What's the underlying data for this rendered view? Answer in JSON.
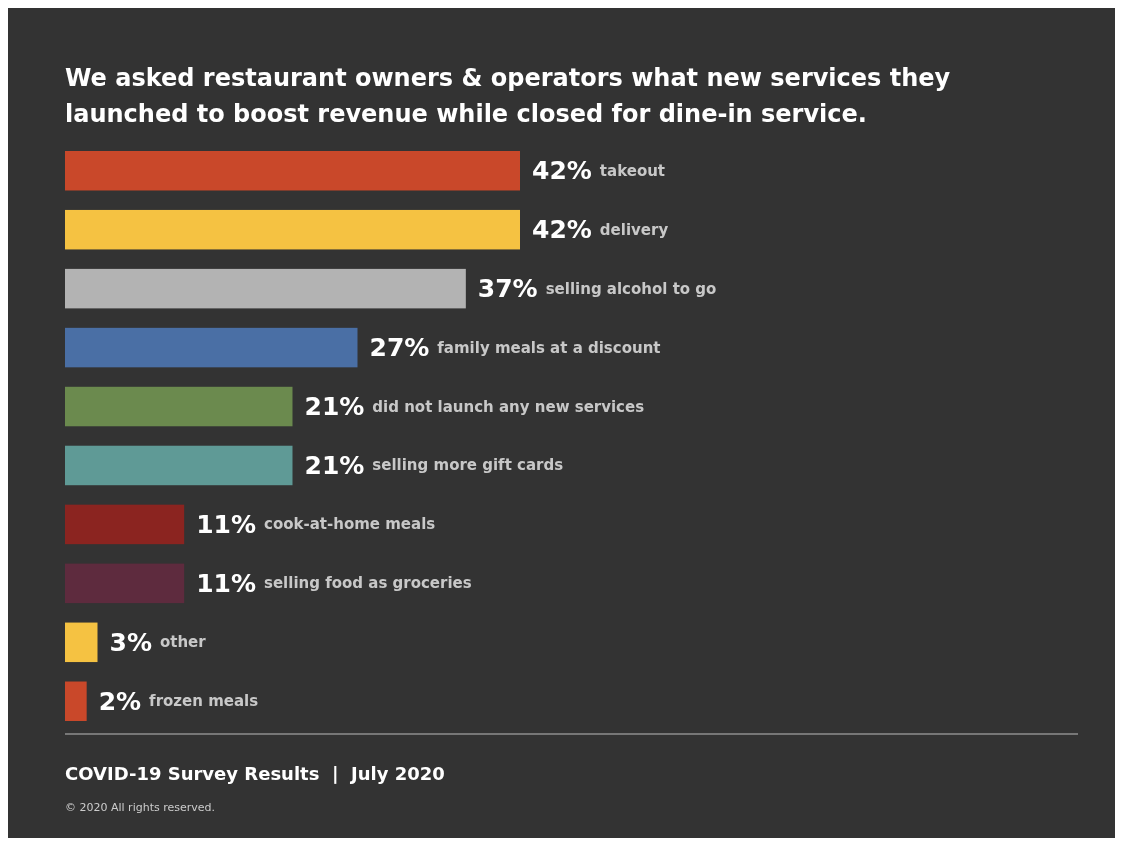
{
  "chart_data": {
    "type": "bar",
    "orientation": "horizontal",
    "title": "We asked restaurant owners & operators what new services they launched to boost revenue while closed for dine-in service.",
    "categories": [
      "takeout",
      "delivery",
      "selling alcohol to go",
      "family meals at a discount",
      "did not launch any new services",
      "selling more gift cards",
      "cook-at-home meals",
      "selling food as groceries",
      "other",
      "frozen meals"
    ],
    "values": [
      42,
      42,
      37,
      27,
      21,
      21,
      11,
      11,
      3,
      2
    ],
    "colors": [
      "#c9482a",
      "#f5c242",
      "#b3b3b3",
      "#4a6fa5",
      "#6b8a4e",
      "#5f9a96",
      "#8b2420",
      "#5e2b3e",
      "#f5c242",
      "#c9482a"
    ],
    "value_labels": [
      "42%",
      "42%",
      "37%",
      "27%",
      "21%",
      "21%",
      "11%",
      "11%",
      "3%",
      "2%"
    ],
    "xlim": [
      0,
      42
    ],
    "annotations": [
      "COVID-19 Survey Results  |  July 2020",
      "© 2020 All rights reserved."
    ]
  }
}
